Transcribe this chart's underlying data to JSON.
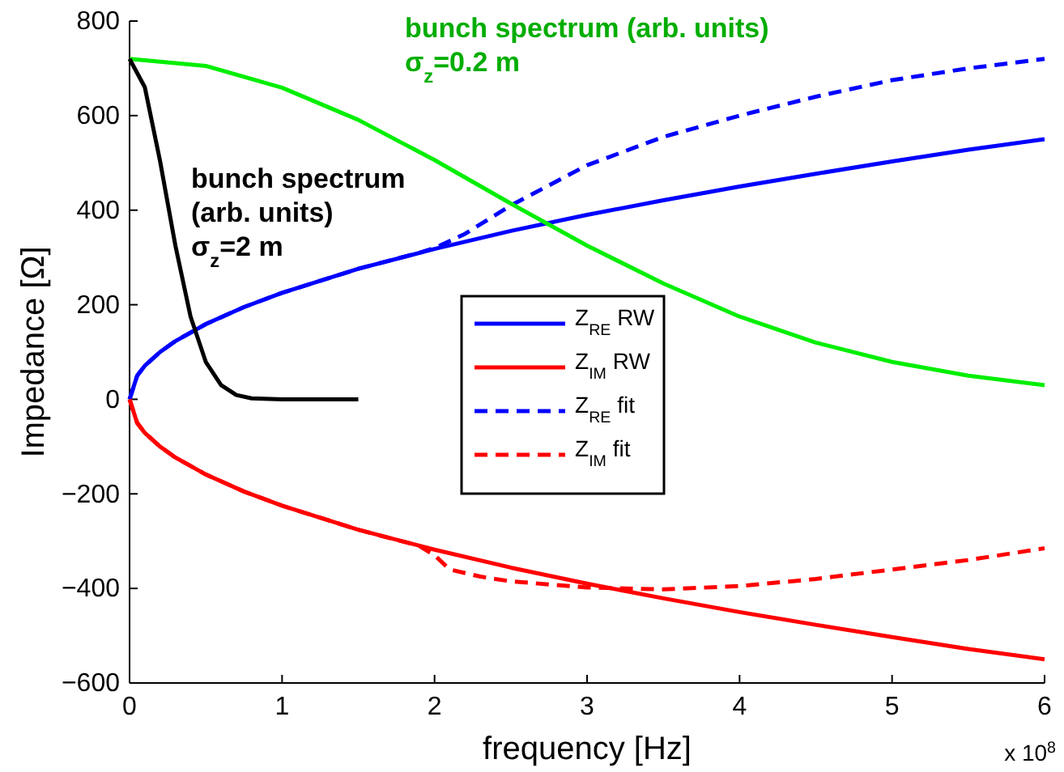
{
  "chart_data": {
    "type": "line",
    "xlabel": "frequency [Hz]",
    "ylabel": "Impedance [Ω]",
    "xlim": [
      0,
      6
    ],
    "xticks": [
      0,
      1,
      2,
      3,
      4,
      5,
      6
    ],
    "ylim": [
      -600,
      800
    ],
    "yticks": [
      -600,
      -400,
      -200,
      0,
      200,
      400,
      600,
      800
    ],
    "grid": false,
    "legend": "center",
    "marker": "none",
    "annotations": [
      "bunch spectrum (arb. units)\nσ$_{z}$=0.2 m",
      "bunch spectrum\n(arb. units)\nσ$_{z}$=2 m",
      "x 10$^{8}$"
    ],
    "series": [
      {
        "name": "Z$_{RE}$ RW",
        "color": "#0000ff",
        "line_style": "solid",
        "x": [
          0,
          0.05,
          0.1,
          0.2,
          0.3,
          0.5,
          0.75,
          1,
          1.5,
          2,
          2.5,
          3,
          3.5,
          4,
          4.5,
          5,
          5.5,
          6
        ],
        "values": [
          0,
          50,
          71,
          100,
          123,
          159,
          195,
          225,
          276,
          318,
          356,
          390,
          421,
          450,
          477,
          503,
          528,
          550
        ]
      },
      {
        "name": "Z$_{IM}$ RW",
        "color": "#ff0000",
        "line_style": "solid",
        "x": [
          0,
          0.05,
          0.1,
          0.2,
          0.3,
          0.5,
          0.75,
          1,
          1.5,
          2,
          2.5,
          3,
          3.5,
          4,
          4.5,
          5,
          5.5,
          6
        ],
        "values": [
          0,
          -50,
          -71,
          -100,
          -123,
          -159,
          -195,
          -225,
          -276,
          -318,
          -356,
          -390,
          -421,
          -450,
          -477,
          -503,
          -528,
          -550
        ]
      },
      {
        "name": "Z$_{RE}$ fit",
        "color": "#0000ff",
        "line_style": "dashed",
        "x": [
          0,
          0.05,
          0.1,
          0.2,
          0.3,
          0.5,
          0.75,
          1,
          1.5,
          1.9,
          2,
          2.2,
          2.5,
          3,
          3.5,
          4,
          4.5,
          5,
          5.5,
          6
        ],
        "values": [
          0,
          50,
          71,
          100,
          123,
          159,
          195,
          225,
          276,
          310,
          320,
          350,
          410,
          495,
          555,
          600,
          640,
          675,
          700,
          720
        ]
      },
      {
        "name": "Z$_{IM}$ fit",
        "color": "#ff0000",
        "line_style": "dashed",
        "x": [
          0,
          0.05,
          0.1,
          0.2,
          0.3,
          0.5,
          0.75,
          1,
          1.5,
          1.9,
          2,
          2.1,
          2.3,
          2.5,
          3,
          3.5,
          4,
          4.5,
          5,
          5.5,
          6
        ],
        "values": [
          0,
          -50,
          -71,
          -100,
          -123,
          -159,
          -195,
          -225,
          -276,
          -310,
          -330,
          -360,
          -375,
          -385,
          -398,
          -402,
          -395,
          -380,
          -360,
          -340,
          -315
        ]
      },
      {
        "color": "#00ee00",
        "line_style": "solid",
        "x": [
          0,
          0.5,
          1,
          1.5,
          2,
          2.5,
          3,
          3.5,
          4,
          4.5,
          5,
          5.5,
          6
        ],
        "values": [
          720,
          705,
          659,
          591,
          506,
          414,
          325,
          245,
          175,
          120,
          79,
          50,
          30
        ]
      },
      {
        "color": "#000000",
        "line_style": "solid",
        "x": [
          0,
          0.1,
          0.2,
          0.3,
          0.4,
          0.5,
          0.6,
          0.7,
          0.8,
          1,
          1.5
        ],
        "values": [
          720,
          660,
          504,
          326,
          175,
          79,
          30,
          9,
          2,
          0,
          0
        ]
      }
    ]
  }
}
